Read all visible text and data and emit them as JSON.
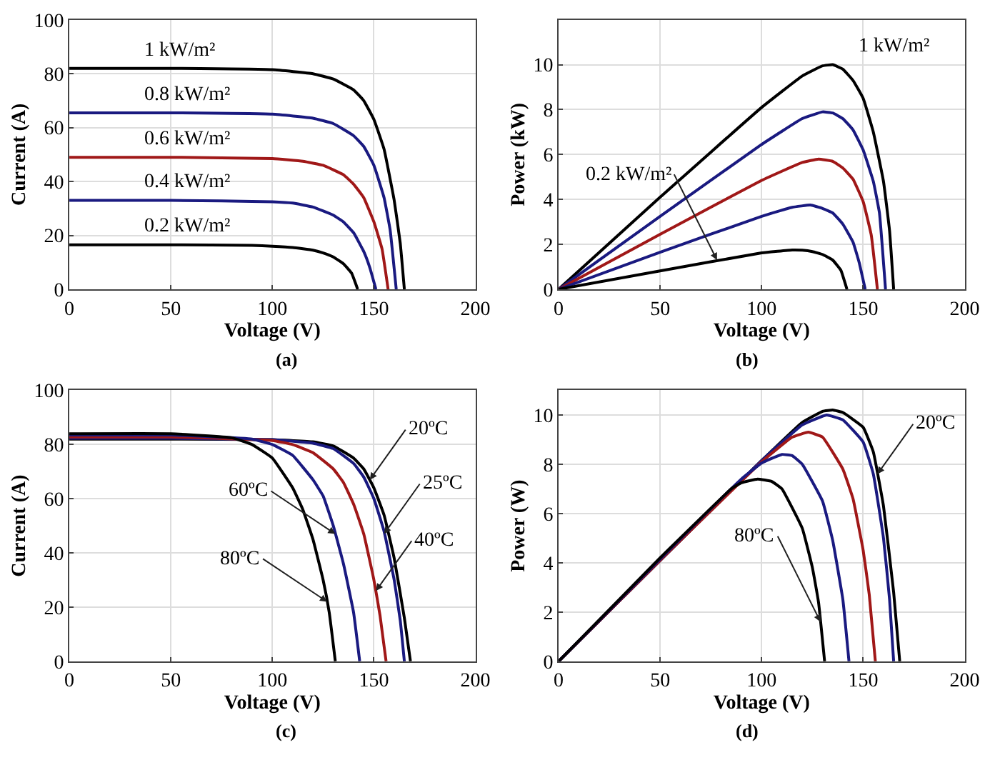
{
  "chart_data": [
    {
      "type": "line",
      "xlabel": "Voltage (V)",
      "ylabel": "Current (A)",
      "annotations": [
        "(a)"
      ],
      "xlim": [
        0,
        200
      ],
      "xticks": [
        0,
        50,
        100,
        150,
        200
      ],
      "ylim": [
        0,
        100
      ],
      "yticks": [
        0,
        20,
        40,
        60,
        80,
        100
      ],
      "grid": true,
      "legend": false,
      "marker": "none",
      "line_style": "solid",
      "series": [
        {
          "name": "1 kW/m²",
          "color": "#000000",
          "x": [
            0,
            50,
            100,
            120,
            130,
            140,
            145,
            150,
            155,
            160,
            163,
            165
          ],
          "values": [
            82,
            82,
            81.5,
            80,
            78,
            74,
            70,
            63,
            52,
            33,
            17,
            0
          ]
        },
        {
          "name": "0.8 kW/m²",
          "color": "#1a1a80",
          "x": [
            0,
            50,
            100,
            120,
            130,
            140,
            145,
            150,
            155,
            158,
            161
          ],
          "values": [
            65.5,
            65.5,
            65,
            63.5,
            61.5,
            57,
            53,
            46,
            34,
            22,
            0
          ]
        },
        {
          "name": "0.6 kW/m²",
          "color": "#a01818",
          "x": [
            0,
            50,
            100,
            115,
            125,
            135,
            140,
            145,
            150,
            154,
            157
          ],
          "values": [
            49,
            49,
            48.5,
            47.5,
            46,
            42.5,
            39,
            34,
            25,
            15,
            0
          ]
        },
        {
          "name": "0.4 kW/m²",
          "color": "#1a1a80",
          "x": [
            0,
            50,
            100,
            110,
            120,
            130,
            135,
            140,
            145,
            148,
            151
          ],
          "values": [
            33,
            33,
            32.5,
            32,
            30.5,
            27.5,
            25,
            21,
            14,
            8,
            0
          ]
        },
        {
          "name": "0.2 kW/m²",
          "color": "#000000",
          "x": [
            0,
            50,
            90,
            100,
            110,
            120,
            125,
            130,
            135,
            139,
            142
          ],
          "values": [
            16.5,
            16.5,
            16.3,
            16,
            15.5,
            14.5,
            13.5,
            12,
            9.5,
            6,
            0
          ]
        }
      ]
    },
    {
      "type": "line",
      "xlabel": "Voltage (V)",
      "ylabel": "Power (kW)",
      "annotations": [
        "(b)",
        {
          "text": "0.2 kW/m²",
          "x": 78,
          "y": 1.3
        }
      ],
      "xlim": [
        0,
        200
      ],
      "xticks": [
        0,
        50,
        100,
        150,
        200
      ],
      "ylim": [
        0,
        12
      ],
      "yticks": [
        0,
        2,
        4,
        6,
        8,
        10
      ],
      "grid": true,
      "legend": false,
      "marker": "none",
      "line_style": "solid",
      "series": [
        {
          "name": "1 kW/m²",
          "color": "#000000",
          "x": [
            0,
            50,
            100,
            120,
            130,
            135,
            140,
            145,
            150,
            155,
            160,
            163,
            165
          ],
          "values": [
            0,
            4.1,
            8.1,
            9.5,
            9.95,
            10,
            9.8,
            9.3,
            8.5,
            7,
            4.8,
            2.6,
            0
          ]
        },
        {
          "color": "#1a1a80",
          "x": [
            0,
            50,
            100,
            120,
            130,
            135,
            140,
            145,
            150,
            155,
            158,
            161
          ],
          "values": [
            0,
            3.25,
            6.45,
            7.6,
            7.9,
            7.85,
            7.6,
            7.1,
            6.2,
            4.8,
            3.4,
            0
          ]
        },
        {
          "color": "#a01818",
          "x": [
            0,
            50,
            100,
            120,
            128,
            135,
            140,
            145,
            150,
            154,
            157
          ],
          "values": [
            0,
            2.45,
            4.85,
            5.65,
            5.8,
            5.7,
            5.4,
            4.9,
            3.9,
            2.4,
            0
          ]
        },
        {
          "color": "#1a1a80",
          "x": [
            0,
            50,
            100,
            115,
            124,
            130,
            135,
            140,
            145,
            148,
            151
          ],
          "values": [
            0,
            1.65,
            3.25,
            3.65,
            3.75,
            3.6,
            3.4,
            2.9,
            2.1,
            1.2,
            0
          ]
        },
        {
          "color": "#000000",
          "x": [
            0,
            50,
            100,
            115,
            120,
            125,
            130,
            135,
            139,
            142
          ],
          "values": [
            0,
            0.82,
            1.62,
            1.75,
            1.74,
            1.68,
            1.55,
            1.3,
            0.85,
            0
          ]
        }
      ]
    },
    {
      "type": "line",
      "xlabel": "Voltage (V)",
      "ylabel": "Current (A)",
      "annotations": [
        "(c)",
        {
          "text": "20ºC",
          "x": 148,
          "y": 67
        },
        {
          "text": "25ºC",
          "x": 155,
          "y": 47
        },
        {
          "text": "40ºC",
          "x": 151,
          "y": 26
        },
        {
          "text": "60ºC",
          "x": 131,
          "y": 47
        },
        {
          "text": "80ºC",
          "x": 127,
          "y": 22
        }
      ],
      "xlim": [
        0,
        200
      ],
      "xticks": [
        0,
        50,
        100,
        150,
        200
      ],
      "ylim": [
        0,
        100
      ],
      "yticks": [
        0,
        20,
        40,
        60,
        80,
        100
      ],
      "grid": true,
      "legend": false,
      "marker": "none",
      "line_style": "solid",
      "series": [
        {
          "color": "#000000",
          "x": [
            0,
            50,
            100,
            120,
            130,
            140,
            145,
            150,
            155,
            160,
            165,
            168
          ],
          "values": [
            82,
            82,
            81.8,
            81,
            79.5,
            75,
            71,
            64,
            54,
            38,
            16,
            0
          ]
        },
        {
          "color": "#1a1a80",
          "x": [
            0,
            50,
            100,
            120,
            130,
            140,
            145,
            150,
            155,
            160,
            163,
            165
          ],
          "values": [
            82.3,
            82.3,
            81.8,
            80.5,
            78.5,
            73,
            68,
            60,
            48,
            30,
            15,
            0
          ]
        },
        {
          "color": "#a01818",
          "x": [
            0,
            50,
            100,
            110,
            120,
            130,
            135,
            140,
            145,
            150,
            153,
            156
          ],
          "values": [
            82.8,
            82.8,
            81.5,
            80,
            77,
            71,
            66,
            58,
            47,
            30,
            17,
            0
          ]
        },
        {
          "color": "#1a1a80",
          "x": [
            0,
            50,
            90,
            100,
            110,
            120,
            125,
            130,
            135,
            140,
            143
          ],
          "values": [
            83.5,
            83.5,
            82,
            80,
            76,
            67,
            61,
            50,
            36,
            18,
            0
          ]
        },
        {
          "color": "#000000",
          "x": [
            0,
            50,
            80,
            90,
            100,
            110,
            115,
            120,
            125,
            128,
            131
          ],
          "values": [
            84,
            84,
            82.5,
            80,
            75,
            64,
            56,
            45,
            30,
            18,
            0
          ]
        }
      ]
    },
    {
      "type": "line",
      "xlabel": "Voltage (V)",
      "ylabel": "Power (W)",
      "annotations": [
        "(d)",
        {
          "text": "20ºC",
          "x": 157,
          "y": 7.6
        },
        {
          "text": "80ºC",
          "x": 129,
          "y": 1.6
        }
      ],
      "xlim": [
        0,
        200
      ],
      "xticks": [
        0,
        50,
        100,
        150,
        200
      ],
      "ylim": [
        0,
        11
      ],
      "yticks": [
        0,
        2,
        4,
        6,
        8,
        10
      ],
      "grid": true,
      "legend": false,
      "marker": "none",
      "line_style": "solid",
      "series": [
        {
          "color": "#000000",
          "x": [
            0,
            50,
            100,
            120,
            130,
            135,
            140,
            150,
            155,
            160,
            165,
            168
          ],
          "values": [
            0,
            4.1,
            8.15,
            9.7,
            10.15,
            10.2,
            10.1,
            9.5,
            8.5,
            6.3,
            2.8,
            0
          ]
        },
        {
          "color": "#1a1a80",
          "x": [
            0,
            50,
            100,
            120,
            132,
            140,
            150,
            155,
            160,
            163,
            165
          ],
          "values": [
            0,
            4.1,
            8.15,
            9.6,
            10,
            9.8,
            8.9,
            7.6,
            5,
            2.5,
            0
          ]
        },
        {
          "color": "#a01818",
          "x": [
            0,
            50,
            100,
            115,
            123,
            130,
            140,
            145,
            150,
            153,
            156
          ],
          "values": [
            0,
            4.1,
            8.1,
            9.1,
            9.3,
            9.1,
            7.8,
            6.6,
            4.5,
            2.7,
            0
          ]
        },
        {
          "color": "#1a1a80",
          "x": [
            0,
            50,
            90,
            100,
            110,
            115,
            120,
            130,
            135,
            140,
            143
          ],
          "values": [
            0,
            4.15,
            7.4,
            8.05,
            8.4,
            8.35,
            8.0,
            6.5,
            4.9,
            2.5,
            0
          ]
        },
        {
          "color": "#000000",
          "x": [
            0,
            50,
            85,
            90,
            98,
            105,
            110,
            120,
            125,
            128,
            131
          ],
          "values": [
            0,
            4.2,
            7.0,
            7.25,
            7.4,
            7.3,
            7.0,
            5.4,
            3.8,
            2.4,
            0
          ]
        }
      ]
    }
  ]
}
